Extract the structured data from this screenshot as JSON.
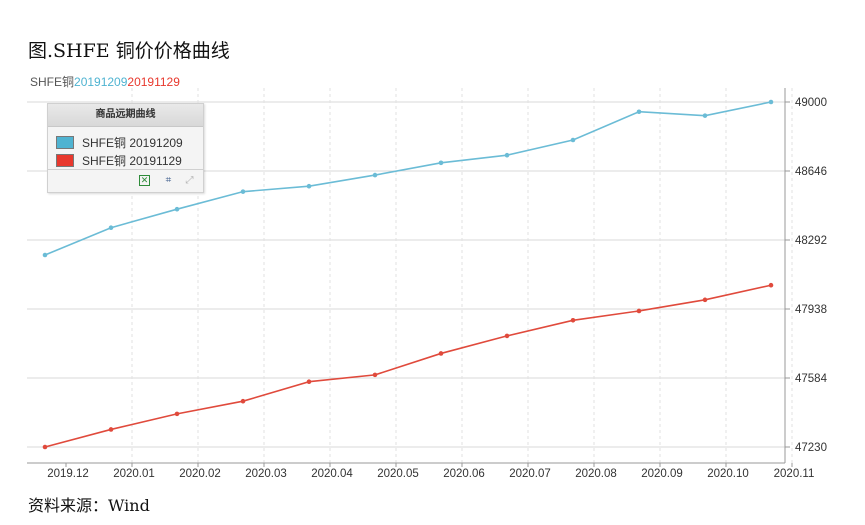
{
  "title": "图.SHFE 铜价价格曲线",
  "source": "资料来源：Wind",
  "top_legend": {
    "prefix": "SHFE铜",
    "a": "20191209",
    "b": "20191129"
  },
  "legend_box": {
    "header": "商品远期曲线",
    "items": [
      {
        "label": "SHFE铜 20191209",
        "color": "#4fb3d1"
      },
      {
        "label": "SHFE铜 20191129",
        "color": "#e8382d"
      }
    ]
  },
  "chart_data": {
    "type": "line",
    "categories": [
      "2019.12",
      "2020.01",
      "2020.02",
      "2020.03",
      "2020.04",
      "2020.05",
      "2020.06",
      "2020.07",
      "2020.08",
      "2020.09",
      "2020.10",
      "2020.11"
    ],
    "y_ticks": [
      47230,
      47584,
      47938,
      48292,
      48646,
      49000
    ],
    "ylim": [
      47230,
      49000
    ],
    "grid": true,
    "series": [
      {
        "name": "SHFE铜 20191209",
        "color": "#6bbcd6",
        "values": [
          48215,
          48355,
          48450,
          48540,
          48568,
          48625,
          48688,
          48727,
          48805,
          48950,
          48930,
          49000
        ]
      },
      {
        "name": "SHFE铜 20191129",
        "color": "#e04a3c",
        "values": [
          47230,
          47320,
          47400,
          47465,
          47565,
          47600,
          47710,
          47800,
          47880,
          47928,
          47985,
          48060
        ]
      }
    ]
  }
}
